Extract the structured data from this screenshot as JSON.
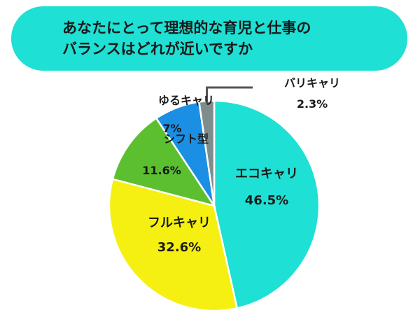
{
  "title": {
    "line1": "あなたにとって理想的な育児と仕事の",
    "line2": "バランスはどれが近いですか"
  },
  "chart_data": {
    "type": "pie",
    "unit": "%",
    "slices": [
      {
        "label": "エコキャリ",
        "value": 46.5,
        "value_text": "46.5%",
        "color": "#1ee0d4"
      },
      {
        "label": "フルキャリ",
        "value": 32.6,
        "value_text": "32.6%",
        "color": "#f5f011"
      },
      {
        "label": "シフト型",
        "value": 11.6,
        "value_text": "11.6%",
        "color": "#5bbf2f"
      },
      {
        "label": "ゆるキャリ",
        "value": 7.0,
        "value_text": "7%",
        "color": "#1a8fe3"
      },
      {
        "label": "バリキャリ",
        "value": 2.3,
        "value_text": "2.3%",
        "color": "#7e8c8d"
      }
    ]
  }
}
